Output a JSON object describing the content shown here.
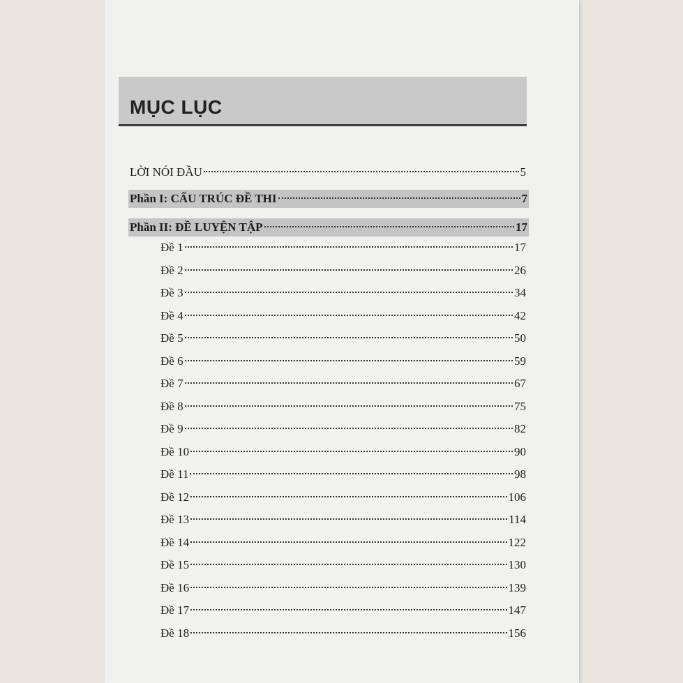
{
  "title": "MỤC LỤC",
  "sections": [
    {
      "label": "LỜI NÓI ĐẦU",
      "page": 5
    },
    {
      "label": "Phần I: CẤU TRÚC ĐỀ THI",
      "page": 7
    },
    {
      "label": "Phần II: ĐỀ LUYỆN TẬP",
      "page": 17
    }
  ],
  "exams": [
    {
      "label": "Đề 1",
      "page": 17
    },
    {
      "label": "Đề 2",
      "page": 26
    },
    {
      "label": "Đề 3",
      "page": 34
    },
    {
      "label": "Đề 4",
      "page": 42
    },
    {
      "label": "Đề 5",
      "page": 50
    },
    {
      "label": "Đề 6",
      "page": 59
    },
    {
      "label": "Đề 7",
      "page": 67
    },
    {
      "label": "Đề 8",
      "page": 75
    },
    {
      "label": "Đề 9",
      "page": 82
    },
    {
      "label": "Đề 10",
      "page": 90
    },
    {
      "label": "Đề 11",
      "page": 98
    },
    {
      "label": "Đề 12",
      "page": 106
    },
    {
      "label": "Đề 13",
      "page": 114
    },
    {
      "label": "Đề 14",
      "page": 122
    },
    {
      "label": "Đề 15",
      "page": 130
    },
    {
      "label": "Đề 16",
      "page": 139
    },
    {
      "label": "Đề 17",
      "page": 147
    },
    {
      "label": "Đề 18",
      "page": 156
    }
  ]
}
